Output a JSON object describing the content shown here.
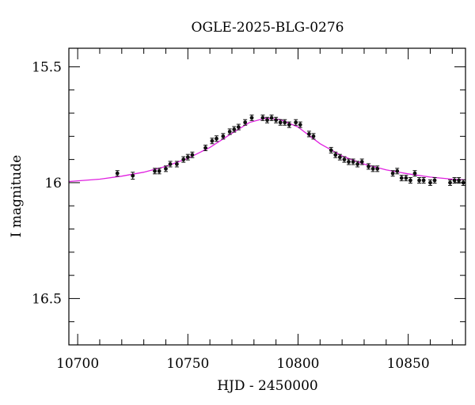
{
  "chart_data": {
    "type": "scatter",
    "title": "OGLE-2025-BLG-0276",
    "xlabel": "HJD - 2450000",
    "ylabel": "I magnitude",
    "xlim": [
      10696,
      10876
    ],
    "ylim": [
      16.7,
      15.42
    ],
    "y_inverted": true,
    "x_ticks": [
      10700,
      10750,
      10800,
      10850
    ],
    "x_tick_labels": [
      "10700",
      "10750",
      "10800",
      "10850"
    ],
    "y_ticks": [
      15.5,
      16,
      16.5
    ],
    "y_tick_labels": [
      "15.5",
      "16",
      "16.5"
    ],
    "grid": false,
    "colors": {
      "model": "#e020e0",
      "points": "#111111",
      "axes": "#000000"
    },
    "series": [
      {
        "type": "scatter-errorbar",
        "x": [
          10718,
          10725,
          10735,
          10737,
          10740,
          10742,
          10745,
          10748,
          10750,
          10752,
          10758,
          10761,
          10763,
          10766,
          10769,
          10771,
          10773,
          10776,
          10779,
          10784,
          10786,
          10788,
          10790,
          10792,
          10794,
          10796,
          10799,
          10801,
          10805,
          10807,
          10815,
          10817,
          10819,
          10821,
          10823,
          10825,
          10827,
          10829,
          10832,
          10834,
          10836,
          10843,
          10845,
          10847,
          10849,
          10851,
          10853,
          10855,
          10857,
          10860,
          10862,
          10869,
          10871,
          10873,
          10875
        ],
        "y": [
          15.96,
          15.97,
          15.95,
          15.95,
          15.94,
          15.92,
          15.92,
          15.9,
          15.89,
          15.88,
          15.85,
          15.82,
          15.81,
          15.8,
          15.78,
          15.77,
          15.76,
          15.74,
          15.72,
          15.72,
          15.73,
          15.72,
          15.73,
          15.74,
          15.74,
          15.75,
          15.74,
          15.75,
          15.79,
          15.8,
          15.86,
          15.88,
          15.89,
          15.9,
          15.91,
          15.91,
          15.92,
          15.91,
          15.93,
          15.94,
          15.94,
          15.96,
          15.95,
          15.98,
          15.98,
          15.99,
          15.96,
          15.99,
          15.99,
          16.0,
          15.99,
          16.0,
          15.99,
          15.99,
          16.0
        ],
        "err": [
          0.012,
          0.015,
          0.012,
          0.012,
          0.012,
          0.012,
          0.012,
          0.012,
          0.012,
          0.012,
          0.012,
          0.012,
          0.012,
          0.012,
          0.012,
          0.012,
          0.012,
          0.012,
          0.012,
          0.012,
          0.012,
          0.012,
          0.012,
          0.012,
          0.012,
          0.012,
          0.012,
          0.012,
          0.012,
          0.012,
          0.012,
          0.012,
          0.012,
          0.012,
          0.012,
          0.012,
          0.012,
          0.012,
          0.012,
          0.012,
          0.012,
          0.012,
          0.012,
          0.012,
          0.012,
          0.012,
          0.012,
          0.012,
          0.012,
          0.012,
          0.012,
          0.012,
          0.012,
          0.012,
          0.012
        ]
      },
      {
        "type": "line",
        "x": [
          10696,
          10710,
          10720,
          10730,
          10740,
          10750,
          10760,
          10770,
          10778,
          10785,
          10792,
          10800,
          10810,
          10820,
          10830,
          10840,
          10850,
          10860,
          10870,
          10876
        ],
        "y": [
          15.995,
          15.985,
          15.972,
          15.955,
          15.93,
          15.895,
          15.848,
          15.787,
          15.74,
          15.722,
          15.728,
          15.76,
          15.832,
          15.885,
          15.92,
          15.945,
          15.962,
          15.976,
          15.985,
          15.988
        ]
      }
    ]
  }
}
